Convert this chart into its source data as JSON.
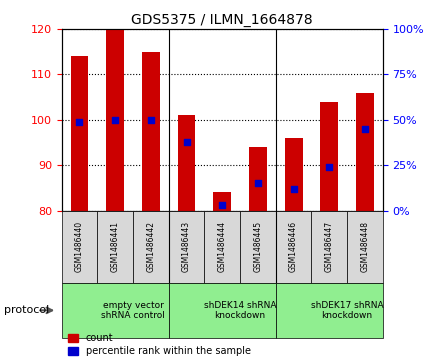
{
  "title": "GDS5375 / ILMN_1664878",
  "samples": [
    "GSM1486440",
    "GSM1486441",
    "GSM1486442",
    "GSM1486443",
    "GSM1486444",
    "GSM1486445",
    "GSM1486446",
    "GSM1486447",
    "GSM1486448"
  ],
  "counts": [
    114,
    120,
    115,
    101,
    84,
    94,
    96,
    104,
    106
  ],
  "percentile_ranks": [
    49,
    50,
    50,
    38,
    3,
    15,
    12,
    24,
    45
  ],
  "ylim_left": [
    80,
    120
  ],
  "ylim_right": [
    0,
    100
  ],
  "yticks_left": [
    80,
    90,
    100,
    110,
    120
  ],
  "yticks_right": [
    0,
    25,
    50,
    75,
    100
  ],
  "bar_color": "#cc0000",
  "dot_color": "#0000cc",
  "bar_width": 0.5,
  "groups": [
    {
      "label": "empty vector\nshRNA control",
      "start": 0,
      "end": 3,
      "color": "#90ee90"
    },
    {
      "label": "shDEK14 shRNA\nknockdown",
      "start": 3,
      "end": 6,
      "color": "#90ee90"
    },
    {
      "label": "shDEK17 shRNA\nknockdown",
      "start": 6,
      "end": 9,
      "color": "#90ee90"
    }
  ],
  "protocol_label": "protocol",
  "legend_count_label": "count",
  "legend_pct_label": "percentile rank within the sample",
  "sample_bg": "#d8d8d8",
  "group_bg": "#90ee90",
  "plot_bg": "#ffffff"
}
